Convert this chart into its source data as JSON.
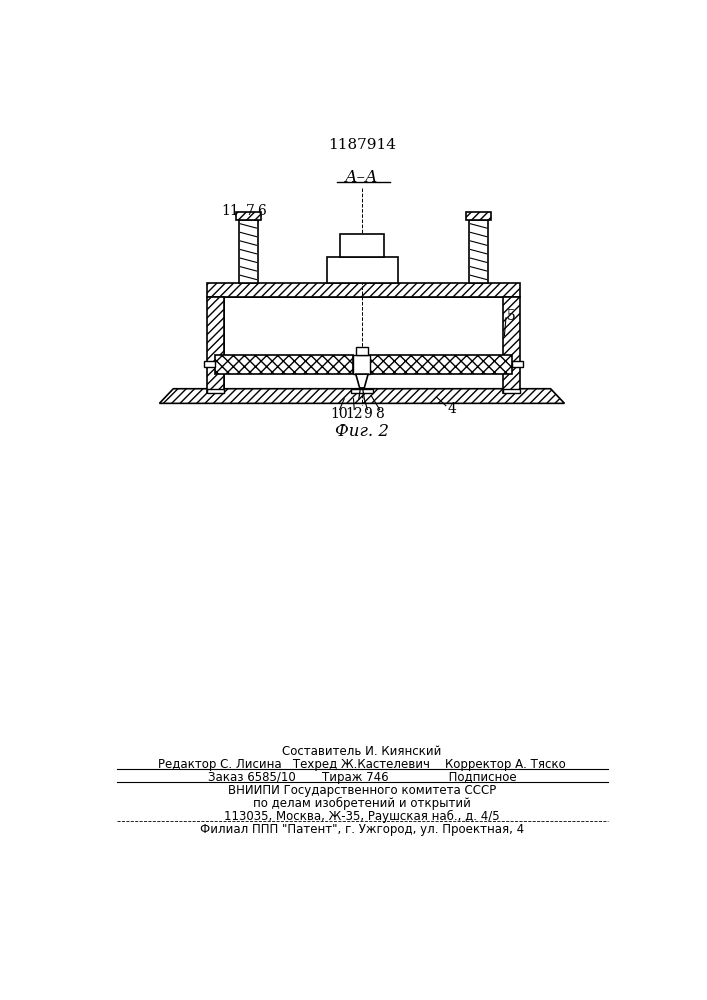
{
  "patent_number": "1187914",
  "section_label": "А–А",
  "figure_label": "Фиг. 2",
  "bg_color": "#ffffff",
  "footer_lines": [
    "Составитель И. Киянский",
    "Редактор С. Лисина   Техред Ж.Кастелевич    Корректор А. Тяско",
    "Заказ 6585/10       Тираж 746                Подписное",
    "ВНИИПИ Государственного комитета СССР",
    "по делам изобретений и открытий",
    "113035, Москва, Ж-35, Раушская наб., д. 4/5",
    "Филиал ППП \"Патент\", г. Ужгород, ул. Проектная, 4"
  ]
}
